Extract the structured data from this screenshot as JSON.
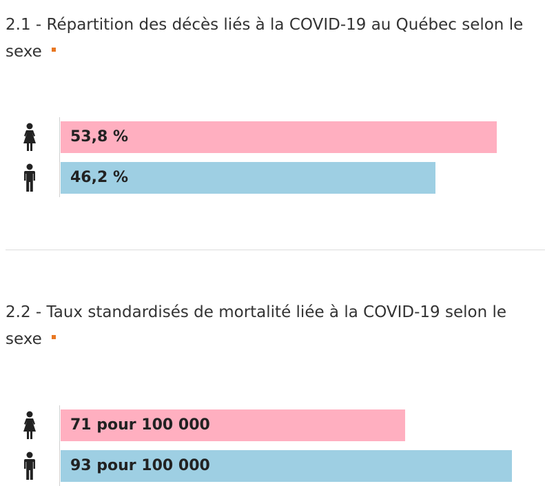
{
  "sections": [
    {
      "title": "2.1 - Répartition des décès liés à la COVID-19 au Québec selon le sexe",
      "bars": [
        {
          "icon": "female-icon",
          "label": "53,8 %",
          "value": 53.8
        },
        {
          "icon": "male-icon",
          "label": "46,2 %",
          "value": 46.2
        }
      ]
    },
    {
      "title": "2.2 - Taux standardisés de mortalité liée à la COVID-19 selon le sexe",
      "bars": [
        {
          "icon": "female-icon",
          "label": "71 pour 100 000",
          "value": 71
        },
        {
          "icon": "male-icon",
          "label": "93 pour 100 000",
          "value": 93
        }
      ]
    }
  ],
  "colors": {
    "female": "#ffafc0",
    "male": "#9ecfe3",
    "marker": "#e87722",
    "icon": "#222222"
  },
  "chart_data": [
    {
      "type": "bar",
      "title": "2.1 - Répartition des décès liés à la COVID-19 au Québec selon le sexe",
      "categories": [
        "Femmes",
        "Hommes"
      ],
      "values": [
        53.8,
        46.2
      ],
      "value_labels": [
        "53,8 %",
        "46,2 %"
      ],
      "orientation": "horizontal",
      "grid": false
    },
    {
      "type": "bar",
      "title": "2.2 - Taux standardisés de mortalité liée à la COVID-19 selon le sexe",
      "categories": [
        "Femmes",
        "Hommes"
      ],
      "values": [
        71,
        93
      ],
      "value_labels": [
        "71 pour 100 000",
        "93 pour 100 000"
      ],
      "orientation": "horizontal",
      "grid": false
    }
  ]
}
